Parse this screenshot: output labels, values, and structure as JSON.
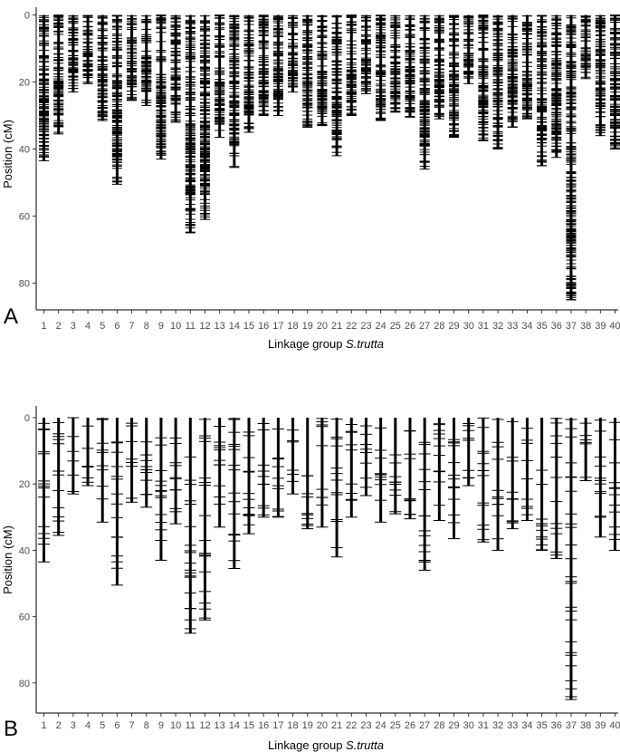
{
  "chart_data": [
    {
      "type": "linkage_map",
      "panel_label": "A",
      "xlabel_prefix": "Linkage group ",
      "xlabel_species": "S.trutta",
      "ylabel": "Position (cM)",
      "y_ticks": [
        0,
        20,
        40,
        60,
        80
      ],
      "ylim": [
        0,
        86
      ],
      "y_reversed": true,
      "marker_style": "dense",
      "groups": [
        "1",
        "2",
        "3",
        "4",
        "5",
        "6",
        "7",
        "8",
        "9",
        "10",
        "11",
        "12",
        "13",
        "14",
        "15",
        "16",
        "17",
        "18",
        "19",
        "20",
        "21",
        "22",
        "23",
        "24",
        "25",
        "26",
        "27",
        "28",
        "29",
        "30",
        "31",
        "32",
        "33",
        "34",
        "35",
        "36",
        "37",
        "38",
        "39",
        "40"
      ],
      "lengths": [
        43.5,
        35.5,
        23,
        20.5,
        31.5,
        50.5,
        25.5,
        27,
        43,
        32,
        65,
        61,
        36.5,
        45.5,
        35,
        30,
        30,
        23,
        33.5,
        33,
        42,
        30,
        23.5,
        31.5,
        29,
        30.5,
        46,
        31,
        36.5,
        20.5,
        37.5,
        40,
        33.5,
        31,
        45,
        42.5,
        85,
        19,
        36,
        40
      ]
    },
    {
      "type": "linkage_map",
      "panel_label": "B",
      "xlabel_prefix": "Linkage group ",
      "xlabel_species": "S.trutta",
      "ylabel": "Position (cM)",
      "y_ticks": [
        0,
        20,
        40,
        60,
        80
      ],
      "ylim": [
        0,
        86
      ],
      "y_reversed": true,
      "marker_style": "sparse",
      "groups": [
        "1",
        "2",
        "3",
        "4",
        "5",
        "6",
        "7",
        "8",
        "9",
        "10",
        "11",
        "12",
        "13",
        "14",
        "15",
        "16",
        "17",
        "18",
        "19",
        "20",
        "21",
        "22",
        "23",
        "24",
        "25",
        "26",
        "27",
        "28",
        "29",
        "30",
        "31",
        "32",
        "33",
        "34",
        "35",
        "36",
        "37",
        "38",
        "39",
        "40"
      ],
      "lengths": [
        43.5,
        35.5,
        23,
        20.5,
        31.5,
        50.5,
        25.5,
        27,
        43,
        32,
        65,
        61,
        33,
        45.5,
        35,
        30,
        30,
        23,
        33.5,
        33,
        42,
        30,
        23.5,
        31.5,
        29,
        30.5,
        46,
        31,
        36.5,
        20.5,
        37.5,
        40,
        33.5,
        31,
        40,
        42.5,
        85,
        19,
        36,
        40
      ]
    }
  ]
}
